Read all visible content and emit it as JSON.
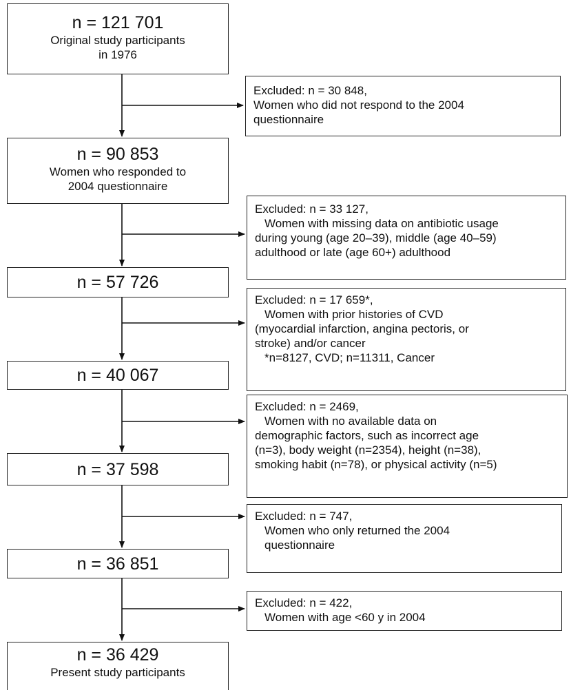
{
  "stages": [
    {
      "count": "n = 121 701",
      "desc": [
        "Original study participants",
        "in 1976"
      ]
    },
    {
      "count": "n = 90 853",
      "desc": [
        "Women who responded to",
        "2004 questionnaire"
      ]
    },
    {
      "count": "n = 57 726",
      "desc": []
    },
    {
      "count": "n = 40 067",
      "desc": []
    },
    {
      "count": "n = 37 598",
      "desc": []
    },
    {
      "count": "n = 36 851",
      "desc": []
    },
    {
      "count": "n = 36 429",
      "desc": [
        "Present study participants"
      ]
    }
  ],
  "exclusions": [
    {
      "header": "Excluded: n = 30 848,",
      "lines": [
        "Women who did not respond to the 2004",
        "questionnaire"
      ]
    },
    {
      "header": "Excluded: n = 33 127,",
      "lines": [
        "Women with missing data on antibiotic usage",
        "during young (age 20–39), middle (age 40–59)",
        "adulthood or late (age 60+) adulthood"
      ]
    },
    {
      "header": "Excluded: n = 17 659*,",
      "lines": [
        "Women with prior histories of CVD",
        "(myocardial  infarction, angina pectoris, or",
        "stroke) and/or cancer",
        "*n=8127, CVD; n=11311, Cancer"
      ]
    },
    {
      "header": "Excluded: n = 2469,",
      "lines": [
        "Women with no available data on",
        "demographic factors, such as incorrect age",
        "(n=3), body weight (n=2354), height (n=38),",
        "smoking habit (n=78), or physical activity (n=5)"
      ]
    },
    {
      "header": "Excluded: n = 747,",
      "lines": [
        "Women who only returned the 2004",
        "questionnaire"
      ]
    },
    {
      "header": "Excluded: n = 422,",
      "lines": [
        "Women with age <60 y in 2004"
      ]
    }
  ]
}
